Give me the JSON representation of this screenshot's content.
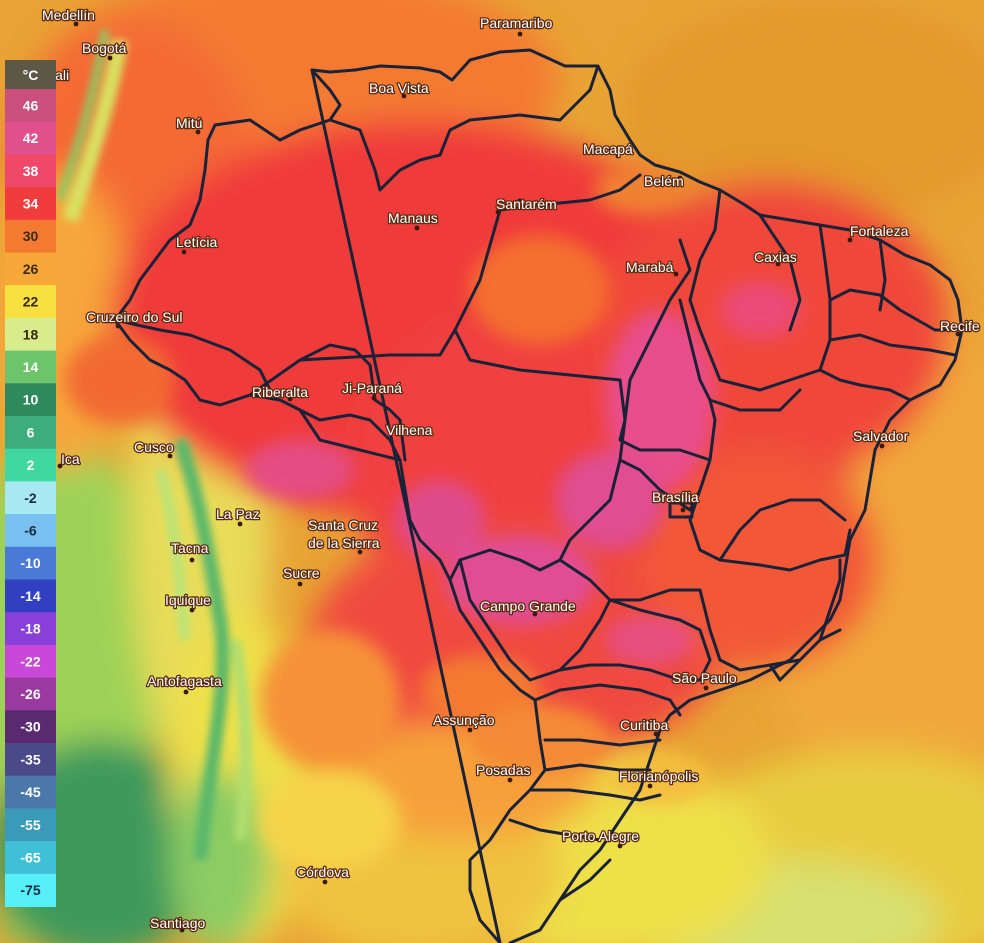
{
  "legend": {
    "unit": "°C",
    "items": [
      {
        "label": "46",
        "color": "#c8507a",
        "text": "#ffffff"
      },
      {
        "label": "42",
        "color": "#e0508c",
        "text": "#ffffff"
      },
      {
        "label": "38",
        "color": "#f04868",
        "text": "#ffffff"
      },
      {
        "label": "34",
        "color": "#f03c3c",
        "text": "#ffffff"
      },
      {
        "label": "30",
        "color": "#f47a32",
        "text": "#3a2a10"
      },
      {
        "label": "26",
        "color": "#f8a838",
        "text": "#3a2a10"
      },
      {
        "label": "22",
        "color": "#f8e040",
        "text": "#3a2a10"
      },
      {
        "label": "18",
        "color": "#d8ec8c",
        "text": "#3a2a10"
      },
      {
        "label": "14",
        "color": "#6ec46a",
        "text": "#ffffff"
      },
      {
        "label": "10",
        "color": "#2e8a5c",
        "text": "#ffffff"
      },
      {
        "label": "6",
        "color": "#3cae7c",
        "text": "#ffffff"
      },
      {
        "label": "2",
        "color": "#40d8a0",
        "text": "#ffffff"
      },
      {
        "label": "-2",
        "color": "#a8e8f0",
        "text": "#1a2a40"
      },
      {
        "label": "-6",
        "color": "#78c0f0",
        "text": "#1a2a40"
      },
      {
        "label": "-10",
        "color": "#4a7ad8",
        "text": "#ffffff"
      },
      {
        "label": "-14",
        "color": "#3040c0",
        "text": "#ffffff"
      },
      {
        "label": "-18",
        "color": "#8840d8",
        "text": "#ffffff"
      },
      {
        "label": "-22",
        "color": "#c848d8",
        "text": "#ffffff"
      },
      {
        "label": "-26",
        "color": "#9a3aa0",
        "text": "#ffffff"
      },
      {
        "label": "-30",
        "color": "#5a2a70",
        "text": "#ffffff"
      },
      {
        "label": "-35",
        "color": "#4a4a8a",
        "text": "#ffffff"
      },
      {
        "label": "-45",
        "color": "#4a78aa",
        "text": "#ffffff"
      },
      {
        "label": "-55",
        "color": "#3a9ab8",
        "text": "#ffffff"
      },
      {
        "label": "-65",
        "color": "#40c0d8",
        "text": "#ffffff"
      },
      {
        "label": "-75",
        "color": "#58f0f8",
        "text": "#1a2a40"
      }
    ]
  },
  "cities": {
    "medellin": "Medellín",
    "bogota": "Bogotá",
    "cali": "Cali",
    "mitu": "Mitú",
    "leticia": "Letícia",
    "cruzeiro_do_sul": "Cruzeiro do Sul",
    "paramaribo": "Paramaribo",
    "boa_vista": "Boa Vista",
    "macapa": "Macapá",
    "belem": "Belém",
    "manaus": "Manaus",
    "santarem": "Santarém",
    "fortaleza": "Fortaleza",
    "caxias": "Caxias",
    "maraba": "Marabá",
    "recife": "Recife",
    "riberalta": "Riberalta",
    "ji_parana": "Ji-Paraná",
    "vilhena": "Vilhena",
    "cusco": "Cusco",
    "ica": "Ica",
    "salvador": "Salvador",
    "brasilia": "Brasília",
    "la_paz": "La Paz",
    "santa_cruz_line1": "Santa Cruz",
    "santa_cruz_line2": "de la Sierra",
    "tacna": "Tacna",
    "sucre": "Sucre",
    "iquique": "Iquique",
    "campo_grande": "Campo Grande",
    "antofagasta": "Antofagasta",
    "sao_paulo": "São Paulo",
    "assuncao": "Assunção",
    "curitiba": "Curitiba",
    "posadas": "Posadas",
    "florianopolis": "Florianópolis",
    "porto_alegre": "Porto Alegre",
    "cordova": "Córdova",
    "santiago": "Santiago"
  },
  "colors": {
    "ocean": "#e6a030",
    "border": "#1a2238"
  }
}
